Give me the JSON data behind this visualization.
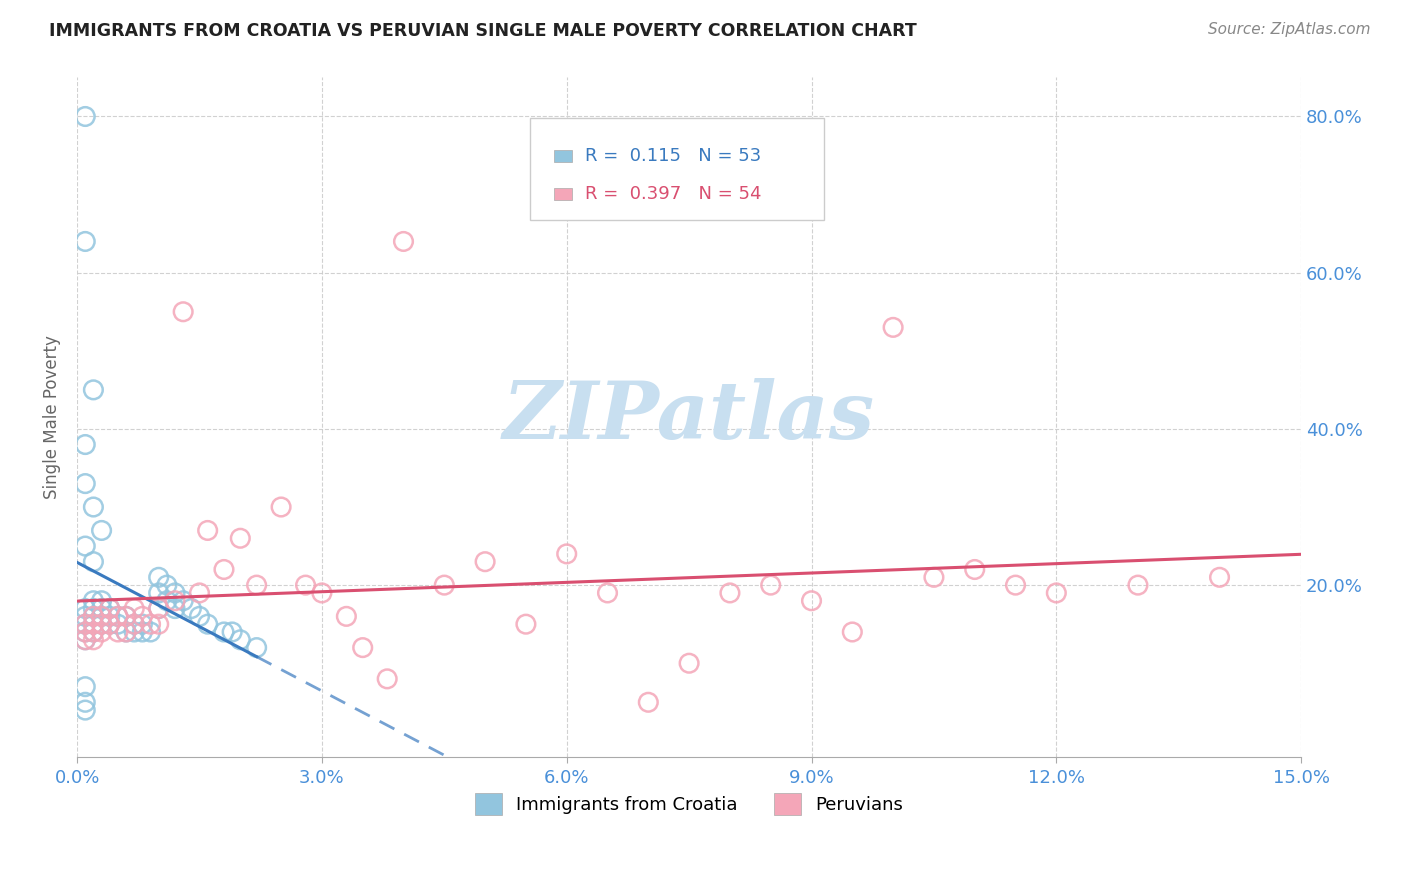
{
  "title": "IMMIGRANTS FROM CROATIA VS PERUVIAN SINGLE MALE POVERTY CORRELATION CHART",
  "source": "Source: ZipAtlas.com",
  "ylabel": "Single Male Poverty",
  "legend_blue_r": "0.115",
  "legend_blue_n": "53",
  "legend_pink_r": "0.397",
  "legend_pink_n": "54",
  "legend_label_blue": "Immigrants from Croatia",
  "legend_label_pink": "Peruvians",
  "blue_color": "#92c5de",
  "pink_color": "#f4a6b8",
  "blue_line_color": "#3a7abf",
  "pink_line_color": "#d94f70",
  "title_color": "#222222",
  "axis_label_color": "#4a90d9",
  "source_color": "#888888",
  "xlim": [
    0.0,
    0.15
  ],
  "ylim": [
    -0.02,
    0.85
  ],
  "x_ticks": [
    0.0,
    0.03,
    0.06,
    0.09,
    0.12,
    0.15
  ],
  "y_ticks": [
    0.2,
    0.4,
    0.6,
    0.8
  ],
  "blue_points_x": [
    0.001,
    0.001,
    0.001,
    0.001,
    0.001,
    0.001,
    0.002,
    0.002,
    0.002,
    0.002,
    0.002,
    0.003,
    0.003,
    0.003,
    0.003,
    0.004,
    0.004,
    0.004,
    0.005,
    0.005,
    0.006,
    0.006,
    0.007,
    0.007,
    0.008,
    0.008,
    0.009,
    0.01,
    0.01,
    0.01,
    0.011,
    0.011,
    0.012,
    0.012,
    0.013,
    0.014,
    0.015,
    0.016,
    0.018,
    0.019,
    0.02,
    0.022,
    0.001,
    0.002,
    0.001,
    0.001,
    0.001,
    0.002,
    0.002,
    0.001,
    0.001,
    0.003,
    0.001
  ],
  "blue_points_y": [
    0.8,
    0.17,
    0.16,
    0.15,
    0.14,
    0.13,
    0.18,
    0.17,
    0.16,
    0.15,
    0.14,
    0.18,
    0.17,
    0.16,
    0.15,
    0.17,
    0.16,
    0.15,
    0.16,
    0.15,
    0.16,
    0.14,
    0.15,
    0.14,
    0.15,
    0.14,
    0.14,
    0.21,
    0.19,
    0.17,
    0.2,
    0.18,
    0.19,
    0.17,
    0.18,
    0.17,
    0.16,
    0.15,
    0.14,
    0.14,
    0.13,
    0.12,
    0.64,
    0.45,
    0.38,
    0.33,
    0.25,
    0.3,
    0.23,
    0.05,
    0.04,
    0.27,
    0.07
  ],
  "pink_points_x": [
    0.001,
    0.001,
    0.001,
    0.002,
    0.002,
    0.002,
    0.002,
    0.003,
    0.003,
    0.003,
    0.004,
    0.004,
    0.005,
    0.005,
    0.006,
    0.006,
    0.007,
    0.007,
    0.008,
    0.009,
    0.01,
    0.01,
    0.012,
    0.013,
    0.015,
    0.016,
    0.018,
    0.02,
    0.022,
    0.025,
    0.028,
    0.03,
    0.033,
    0.035,
    0.038,
    0.04,
    0.045,
    0.05,
    0.055,
    0.06,
    0.065,
    0.07,
    0.075,
    0.08,
    0.085,
    0.09,
    0.095,
    0.1,
    0.105,
    0.11,
    0.115,
    0.12,
    0.13,
    0.14
  ],
  "pink_points_y": [
    0.15,
    0.14,
    0.13,
    0.16,
    0.15,
    0.14,
    0.13,
    0.16,
    0.15,
    0.14,
    0.17,
    0.15,
    0.16,
    0.14,
    0.16,
    0.14,
    0.17,
    0.15,
    0.16,
    0.15,
    0.17,
    0.15,
    0.18,
    0.55,
    0.19,
    0.27,
    0.22,
    0.26,
    0.2,
    0.3,
    0.2,
    0.19,
    0.16,
    0.12,
    0.08,
    0.64,
    0.2,
    0.23,
    0.15,
    0.24,
    0.19,
    0.05,
    0.1,
    0.19,
    0.2,
    0.18,
    0.14,
    0.53,
    0.21,
    0.22,
    0.2,
    0.19,
    0.2,
    0.21
  ],
  "watermark_text": "ZIPatlas",
  "watermark_color": "#c8dff0"
}
